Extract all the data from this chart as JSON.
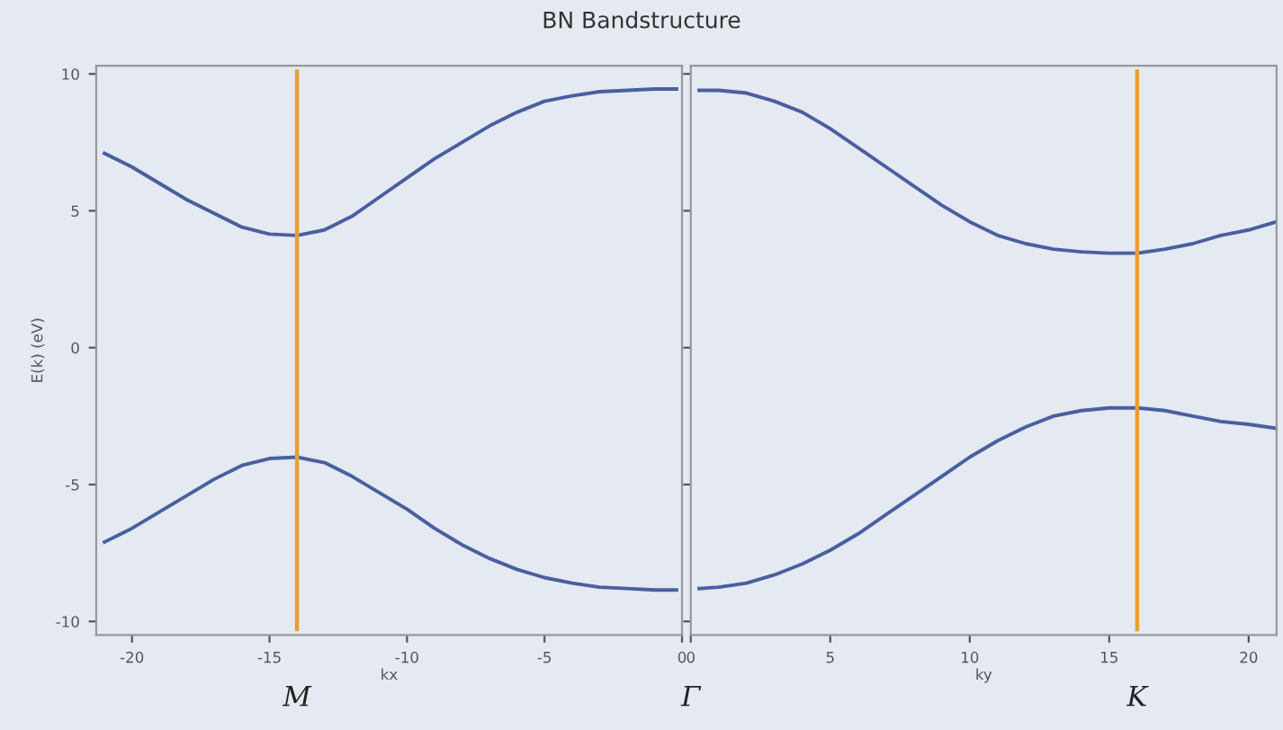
{
  "chart_data": [
    {
      "type": "line",
      "title": "BN Bandstructure",
      "xlabel": "kx",
      "ylabel": "E(k) (eV)",
      "xlim": [
        -21.3,
        0
      ],
      "ylim": [
        -10.5,
        10.3
      ],
      "xticks": [
        -20,
        -15,
        -10,
        -5,
        0
      ],
      "yticks": [
        -10,
        -5,
        0,
        5,
        10
      ],
      "grid": false,
      "legend": false,
      "series": [
        {
          "color": "#4a5fa0",
          "x": [
            -21,
            -20,
            -19,
            -18,
            -17,
            -16,
            -15,
            -14,
            -13,
            -12,
            -11,
            -10,
            -9,
            -8,
            -7,
            -6,
            -5,
            -4,
            -3,
            -2,
            -1,
            -0.2
          ],
          "values": [
            7.1,
            6.6,
            6.0,
            5.4,
            4.9,
            4.4,
            4.15,
            4.1,
            4.3,
            4.8,
            5.5,
            6.2,
            6.9,
            7.5,
            8.1,
            8.6,
            9.0,
            9.2,
            9.35,
            9.4,
            9.45,
            9.45
          ]
        },
        {
          "color": "#4a5fa0",
          "x": [
            -21,
            -20,
            -19,
            -18,
            -17,
            -16,
            -15,
            -14,
            -13,
            -12,
            -11,
            -10,
            -9,
            -8,
            -7,
            -6,
            -5,
            -4,
            -3,
            -2,
            -1,
            -0.2
          ],
          "values": [
            -7.1,
            -6.6,
            -6.0,
            -5.4,
            -4.8,
            -4.3,
            -4.05,
            -4.0,
            -4.2,
            -4.7,
            -5.3,
            -5.9,
            -6.6,
            -7.2,
            -7.7,
            -8.1,
            -8.4,
            -8.6,
            -8.75,
            -8.8,
            -8.85,
            -8.85
          ]
        }
      ],
      "ref_lines": [
        {
          "axis": "x",
          "value": -14,
          "color": "#e8a030",
          "label": "M"
        }
      ]
    },
    {
      "type": "line",
      "xlabel": "ky",
      "xlim": [
        0,
        21
      ],
      "ylim": [
        -10.5,
        10.3
      ],
      "xticks": [
        0,
        5,
        10,
        15,
        20
      ],
      "yticks": [
        -10,
        -5,
        0,
        5,
        10
      ],
      "tick_labels": "x",
      "grid": false,
      "legend": false,
      "series": [
        {
          "color": "#4a5fa0",
          "x": [
            0.3,
            1,
            2,
            3,
            4,
            5,
            6,
            7,
            8,
            9,
            10,
            11,
            12,
            13,
            14,
            15,
            16,
            17,
            18,
            19,
            20,
            21
          ],
          "values": [
            9.4,
            9.4,
            9.3,
            9.0,
            8.6,
            8.0,
            7.3,
            6.6,
            5.9,
            5.2,
            4.6,
            4.1,
            3.8,
            3.6,
            3.5,
            3.45,
            3.45,
            3.6,
            3.8,
            4.1,
            4.3,
            4.6
          ]
        },
        {
          "color": "#4a5fa0",
          "x": [
            0.3,
            1,
            2,
            3,
            4,
            5,
            6,
            7,
            8,
            9,
            10,
            11,
            12,
            13,
            14,
            15,
            16,
            17,
            18,
            19,
            20,
            21
          ],
          "values": [
            -8.8,
            -8.75,
            -8.6,
            -8.3,
            -7.9,
            -7.4,
            -6.8,
            -6.1,
            -5.4,
            -4.7,
            -4.0,
            -3.4,
            -2.9,
            -2.5,
            -2.3,
            -2.2,
            -2.2,
            -2.3,
            -2.5,
            -2.7,
            -2.8,
            -2.95
          ]
        }
      ],
      "ref_lines": [
        {
          "axis": "x",
          "value": 16,
          "color": "#e8a030",
          "label": "K"
        }
      ],
      "annotations": [
        "Γ"
      ]
    }
  ]
}
